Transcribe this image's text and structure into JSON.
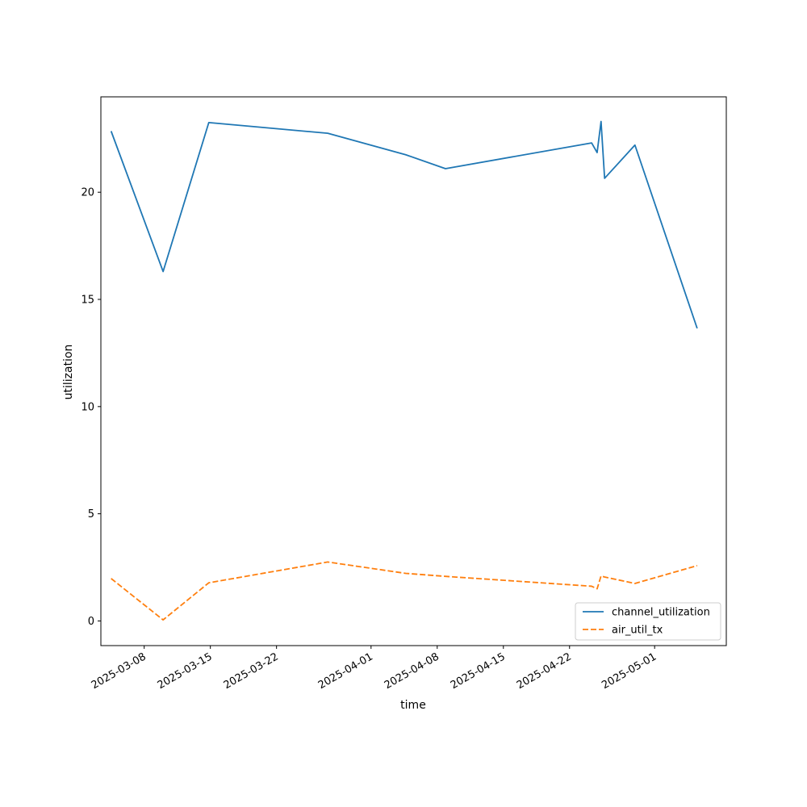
{
  "chart_data": {
    "type": "line",
    "title": "",
    "xlabel": "time",
    "ylabel": "utilization",
    "xlim": [
      "2025-03-03T10:00",
      "2025-05-08T14:00"
    ],
    "ylim": [
      -1.15,
      24.45
    ],
    "xticks": [
      "2025-03-08",
      "2025-03-15",
      "2025-03-22",
      "2025-04-01",
      "2025-04-08",
      "2025-04-15",
      "2025-04-22",
      "2025-05-01"
    ],
    "yticks": [
      0,
      5,
      10,
      15,
      20
    ],
    "grid": false,
    "legend_position": "lower-right",
    "series": [
      {
        "name": "channel_utilization",
        "color": "#1f77b4",
        "dash": "solid",
        "points": [
          {
            "x": "2025-03-04T12:00",
            "y": 22.85
          },
          {
            "x": "2025-03-10T00:00",
            "y": 16.3
          },
          {
            "x": "2025-03-14T20:00",
            "y": 23.25
          },
          {
            "x": "2025-03-27T10:00",
            "y": 22.75
          },
          {
            "x": "2025-04-04T16:00",
            "y": 21.75
          },
          {
            "x": "2025-04-08T21:00",
            "y": 21.1
          },
          {
            "x": "2025-04-24T08:00",
            "y": 22.3
          },
          {
            "x": "2025-04-24T22:00",
            "y": 21.85
          },
          {
            "x": "2025-04-25T08:00",
            "y": 23.3
          },
          {
            "x": "2025-04-25T17:00",
            "y": 20.65
          },
          {
            "x": "2025-04-28T22:00",
            "y": 22.2
          },
          {
            "x": "2025-05-05T12:00",
            "y": 13.65
          }
        ]
      },
      {
        "name": "air_util_tx",
        "color": "#ff7f0e",
        "dash": "dashed",
        "points": [
          {
            "x": "2025-03-04T12:00",
            "y": 1.98
          },
          {
            "x": "2025-03-10T00:00",
            "y": 0.05
          },
          {
            "x": "2025-03-14T20:00",
            "y": 1.78
          },
          {
            "x": "2025-03-27T10:00",
            "y": 2.75
          },
          {
            "x": "2025-04-04T16:00",
            "y": 2.22
          },
          {
            "x": "2025-04-08T21:00",
            "y": 2.08
          },
          {
            "x": "2025-04-24T08:00",
            "y": 1.62
          },
          {
            "x": "2025-04-24T22:00",
            "y": 1.5
          },
          {
            "x": "2025-04-25T08:00",
            "y": 2.1
          },
          {
            "x": "2025-04-25T17:00",
            "y": 2.05
          },
          {
            "x": "2025-04-28T22:00",
            "y": 1.75
          },
          {
            "x": "2025-05-05T12:00",
            "y": 2.58
          }
        ]
      }
    ]
  }
}
